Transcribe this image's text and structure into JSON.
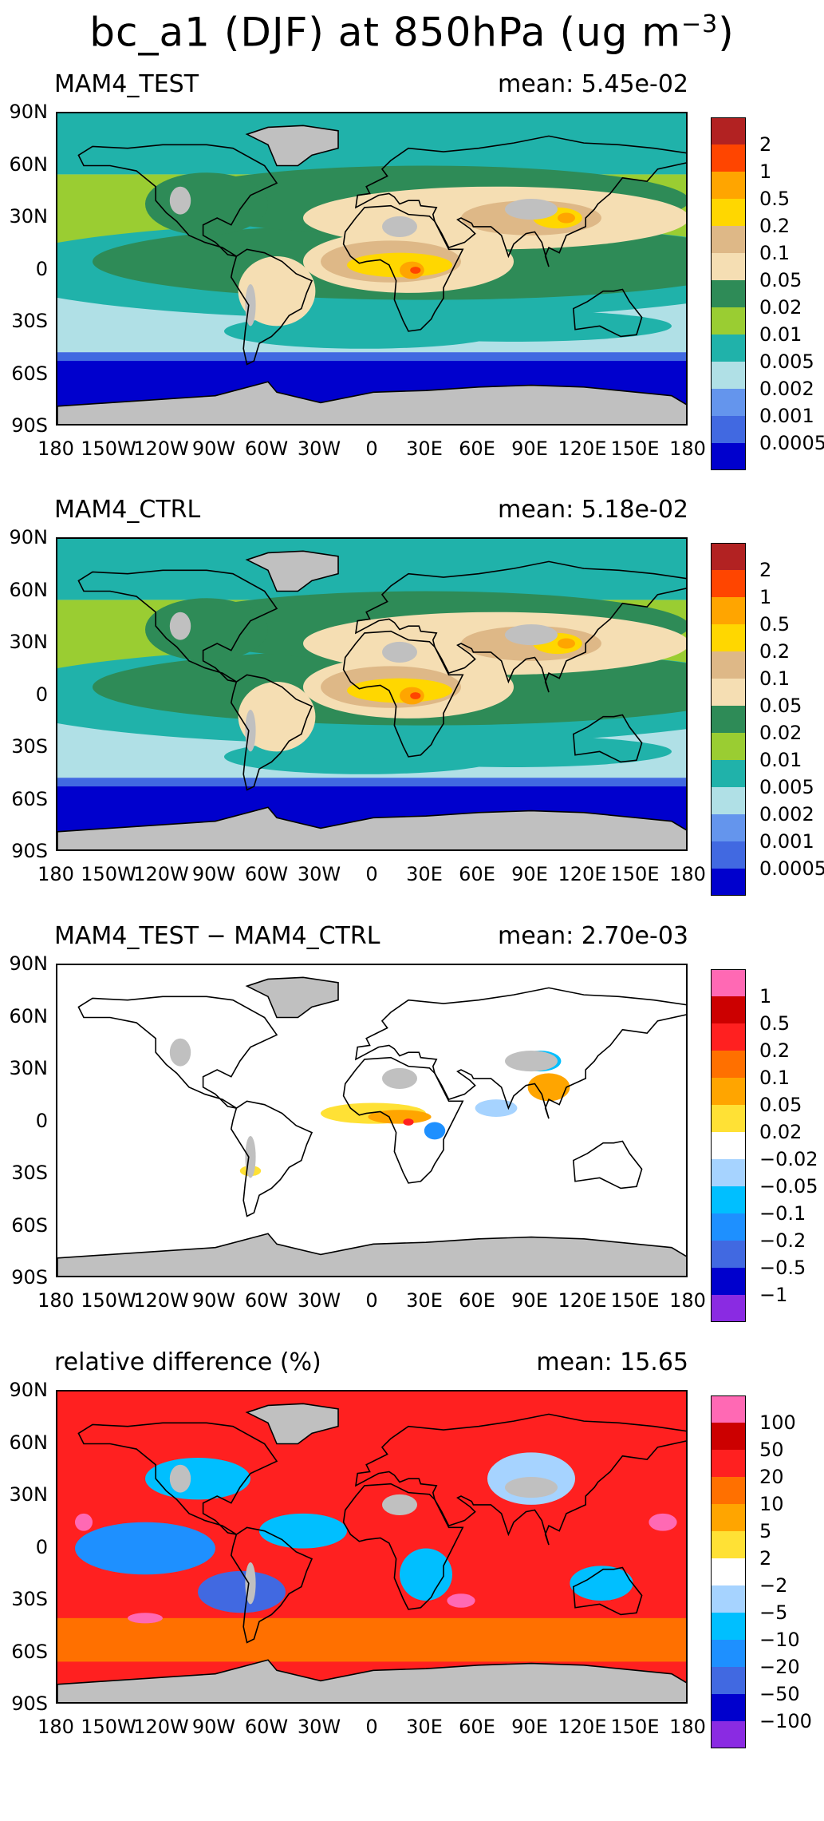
{
  "figure": {
    "title_main": "bc_a1 (DJF) at 850hPa (ug m",
    "title_exp": "−3",
    "title_close": ")"
  },
  "lat_labels": [
    "90N",
    "60N",
    "30N",
    "0",
    "30S",
    "60S",
    "90S"
  ],
  "lon_labels": [
    "180",
    "150W",
    "120W",
    "90W",
    "60W",
    "30W",
    "0",
    "30E",
    "60E",
    "90E",
    "120E",
    "150E",
    "180"
  ],
  "panels": [
    {
      "title": "MAM4_TEST",
      "mean": "mean: 5.45e-02",
      "colors": [
        "#b22222",
        "#ff4500",
        "#ffa500",
        "#ffd700",
        "#deb887",
        "#f5deb3",
        "#2e8b57",
        "#9acd32",
        "#20b2aa",
        "#b0e0e6",
        "#6495ed",
        "#4169e1",
        "#0000cd"
      ],
      "labels": [
        "2",
        "1",
        "0.5",
        "0.2",
        "0.1",
        "0.05",
        "0.02",
        "0.01",
        "0.005",
        "0.002",
        "0.001",
        "0.0005"
      ]
    },
    {
      "title": "MAM4_CTRL",
      "mean": "mean: 5.18e-02",
      "colors": [
        "#b22222",
        "#ff4500",
        "#ffa500",
        "#ffd700",
        "#deb887",
        "#f5deb3",
        "#2e8b57",
        "#9acd32",
        "#20b2aa",
        "#b0e0e6",
        "#6495ed",
        "#4169e1",
        "#0000cd"
      ],
      "labels": [
        "2",
        "1",
        "0.5",
        "0.2",
        "0.1",
        "0.05",
        "0.02",
        "0.01",
        "0.005",
        "0.002",
        "0.001",
        "0.0005"
      ]
    },
    {
      "title": "MAM4_TEST − MAM4_CTRL",
      "mean": "mean: 2.70e-03",
      "colors": [
        "#ff69b4",
        "#cc0000",
        "#ff2020",
        "#ff7000",
        "#ffa500",
        "#ffe135",
        "#ffffff",
        "#a6d3ff",
        "#00bfff",
        "#1e90ff",
        "#4169e1",
        "#0000cd",
        "#8a2be2"
      ],
      "labels": [
        "1",
        "0.5",
        "0.2",
        "0.1",
        "0.05",
        "0.02",
        "−0.02",
        "−0.05",
        "−0.1",
        "−0.2",
        "−0.5",
        "−1"
      ]
    },
    {
      "title": "relative difference (%)",
      "mean": "mean: 15.65",
      "colors": [
        "#ff69b4",
        "#cc0000",
        "#ff2020",
        "#ff7000",
        "#ffa500",
        "#ffe135",
        "#ffffff",
        "#a6d3ff",
        "#00bfff",
        "#1e90ff",
        "#4169e1",
        "#0000cd",
        "#8a2be2"
      ],
      "labels": [
        "100",
        "50",
        "20",
        "10",
        "5",
        "2",
        "−2",
        "−5",
        "−10",
        "−20",
        "−50",
        "−100"
      ]
    }
  ]
}
